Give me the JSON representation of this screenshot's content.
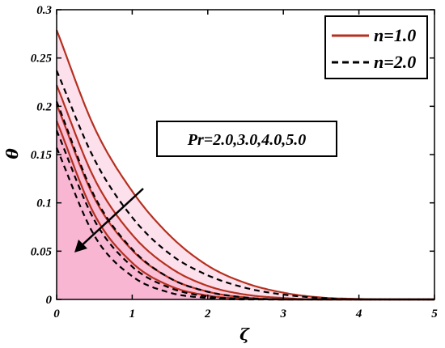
{
  "chart_data": {
    "type": "line",
    "title": "",
    "xlabel": "ζ",
    "ylabel": "θ",
    "xlim": [
      0,
      5
    ],
    "ylim": [
      0,
      0.3
    ],
    "xticks": [
      "0",
      "1",
      "2",
      "3",
      "4",
      "5"
    ],
    "yticks": [
      "0",
      "0.05",
      "0.1",
      "0.15",
      "0.2",
      "0.25",
      "0.3"
    ],
    "grid": false,
    "legend_position": "top-right",
    "legend": [
      {
        "label": "n=1.0",
        "style": "solid",
        "color": "#b5301f"
      },
      {
        "label": "n=2.0",
        "style": "dashed",
        "color": "#000000"
      }
    ],
    "annotation": "Pr=2.0,3.0,4.0,5.0",
    "arrow_direction": "decreasing with Pr",
    "shading_color": "#f5a6c8",
    "series": [
      {
        "group": "n=1.0",
        "x": [
          0,
          0.5,
          1,
          1.5,
          2,
          2.5,
          3,
          3.5,
          4,
          4.5,
          5
        ],
        "values": [
          0.279,
          0.178,
          0.112,
          0.066,
          0.035,
          0.017,
          0.007,
          0.002,
          0.0005,
          0,
          0
        ]
      },
      {
        "group": "n=1.0",
        "x": [
          0,
          0.5,
          1,
          1.5,
          2,
          2.5,
          3,
          3.5,
          4,
          4.5,
          5
        ],
        "values": [
          0.222,
          0.125,
          0.067,
          0.033,
          0.014,
          0.005,
          0.0015,
          0,
          0,
          0,
          0
        ]
      },
      {
        "group": "n=1.0",
        "x": [
          0,
          0.5,
          1,
          1.5,
          2,
          2.5,
          3,
          3.5,
          4,
          4.5,
          5
        ],
        "values": [
          0.202,
          0.105,
          0.051,
          0.022,
          0.008,
          0.002,
          0,
          0,
          0,
          0,
          0
        ]
      },
      {
        "group": "n=1.0",
        "x": [
          0,
          0.5,
          1,
          1.5,
          2,
          2.5,
          3,
          3.5,
          4,
          4.5,
          5
        ],
        "values": [
          0.185,
          0.088,
          0.038,
          0.014,
          0.004,
          0.0008,
          0,
          0,
          0,
          0,
          0
        ]
      },
      {
        "group": "n=2.0",
        "x": [
          0,
          0.5,
          1,
          1.5,
          2,
          2.5,
          3,
          3.5,
          4,
          4.5,
          5
        ],
        "values": [
          0.237,
          0.145,
          0.085,
          0.047,
          0.025,
          0.012,
          0.005,
          0.0015,
          0,
          0,
          0
        ]
      },
      {
        "group": "n=2.0",
        "x": [
          0,
          0.5,
          1,
          1.5,
          2,
          2.5,
          3,
          3.5,
          4,
          4.5,
          5
        ],
        "values": [
          0.205,
          0.107,
          0.052,
          0.022,
          0.008,
          0.002,
          0,
          0,
          0,
          0,
          0
        ]
      },
      {
        "group": "n=2.0",
        "x": [
          0,
          0.5,
          1,
          1.5,
          2,
          2.5,
          3,
          3.5,
          4,
          4.5,
          5
        ],
        "values": [
          0.175,
          0.082,
          0.034,
          0.012,
          0.003,
          0.0005,
          0,
          0,
          0,
          0,
          0
        ]
      },
      {
        "group": "n=2.0",
        "x": [
          0,
          0.5,
          1,
          1.5,
          2,
          2.5,
          3,
          3.5,
          4,
          4.5,
          5
        ],
        "values": [
          0.157,
          0.066,
          0.024,
          0.007,
          0.0015,
          0,
          0,
          0,
          0,
          0,
          0
        ]
      }
    ]
  }
}
